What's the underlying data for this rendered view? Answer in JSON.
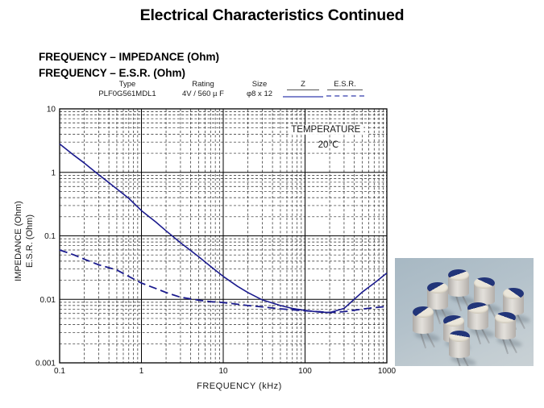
{
  "title": "Electrical Characteristics Continued",
  "section": {
    "heading1": "FREQUENCY – IMPEDANCE (Ohm)",
    "heading2": "FREQUENCY – E.S.R. (Ohm)"
  },
  "spec_table": {
    "col_type": "Type",
    "col_rating": "Rating",
    "col_size": "Size",
    "col_z": "Z",
    "col_esr": "E.S.R.",
    "row_type": "PLF0G561MDL1",
    "row_rating": "4V / 560 µ F",
    "row_size": "φ8 x 12"
  },
  "annotation": {
    "label": "TEMPERATURE :",
    "value": "20℃"
  },
  "chart_data": {
    "type": "line",
    "title": "",
    "xlabel": "FREQUENCY  (kHz)",
    "ylabel_line1": "IMPEDANCE (Ohm)",
    "ylabel_line2": "E.S.R. (Ohm)",
    "x_scale": "log",
    "y_scale": "log",
    "xlim": [
      0.1,
      1000
    ],
    "ylim": [
      0.001,
      10
    ],
    "x_ticks": [
      0.1,
      1,
      10,
      100,
      1000
    ],
    "x_tick_labels": [
      "0.1",
      "1",
      "10",
      "100",
      "1000"
    ],
    "y_ticks": [
      10,
      1,
      0.1,
      0.01,
      0.001
    ],
    "y_tick_labels": [
      "10",
      "1",
      "0.1",
      "0.01",
      "0.001"
    ],
    "grid": true,
    "legend_position": "above-top-right",
    "curve_color": "#1b1b8e",
    "legend_color": "#8086cc",
    "series": [
      {
        "name": "Z",
        "style": "solid",
        "points": [
          [
            0.1,
            2.8
          ],
          [
            0.15,
            1.85
          ],
          [
            0.2,
            1.4
          ],
          [
            0.3,
            0.92
          ],
          [
            0.5,
            0.55
          ],
          [
            0.7,
            0.39
          ],
          [
            1,
            0.25
          ],
          [
            1.5,
            0.165
          ],
          [
            2,
            0.12
          ],
          [
            3,
            0.078
          ],
          [
            5,
            0.047
          ],
          [
            7,
            0.033
          ],
          [
            10,
            0.023
          ],
          [
            15,
            0.016
          ],
          [
            20,
            0.0128
          ],
          [
            30,
            0.0098
          ],
          [
            50,
            0.008
          ],
          [
            70,
            0.0072
          ],
          [
            100,
            0.0067
          ],
          [
            150,
            0.0063
          ],
          [
            200,
            0.0062
          ],
          [
            300,
            0.0072
          ],
          [
            500,
            0.013
          ],
          [
            700,
            0.018
          ],
          [
            1000,
            0.026
          ]
        ]
      },
      {
        "name": "E.S.R.",
        "style": "dashed",
        "points": [
          [
            0.1,
            0.06
          ],
          [
            0.15,
            0.05
          ],
          [
            0.2,
            0.043
          ],
          [
            0.3,
            0.035
          ],
          [
            0.5,
            0.029
          ],
          [
            0.7,
            0.023
          ],
          [
            1,
            0.018
          ],
          [
            1.5,
            0.0148
          ],
          [
            2,
            0.0128
          ],
          [
            3,
            0.0108
          ],
          [
            5,
            0.0097
          ],
          [
            7,
            0.0092
          ],
          [
            10,
            0.0089
          ],
          [
            20,
            0.008
          ],
          [
            30,
            0.0076
          ],
          [
            50,
            0.0071
          ],
          [
            100,
            0.0066
          ],
          [
            150,
            0.0064
          ],
          [
            200,
            0.0062
          ],
          [
            300,
            0.0064
          ],
          [
            500,
            0.007
          ],
          [
            700,
            0.0074
          ],
          [
            1000,
            0.0077
          ]
        ]
      }
    ]
  },
  "photo": {
    "alt": "Nine cylindrical chip-type polymer capacitors with blue and white tops standing upright on a blue-gray surface"
  }
}
